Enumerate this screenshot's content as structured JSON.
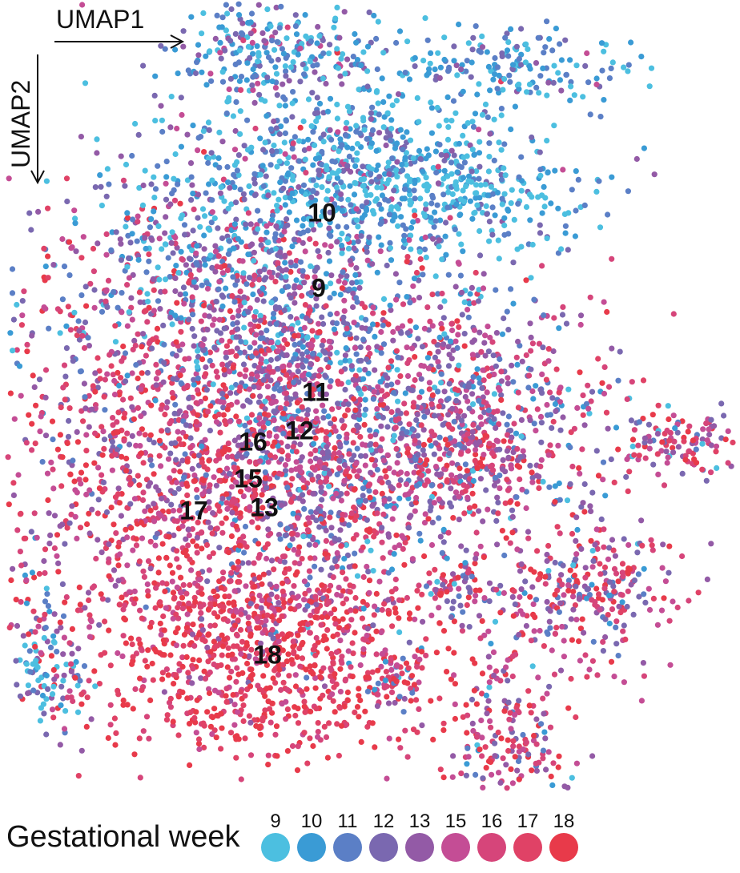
{
  "chart_data": {
    "type": "scatter",
    "title": "",
    "xlabel": "UMAP1",
    "ylabel": "UMAP2",
    "legend": {
      "title": "Gestational week",
      "placement": "bottom",
      "entries": [
        {
          "label": "9",
          "color": "#4cbfe0"
        },
        {
          "label": "10",
          "color": "#3a9bd5"
        },
        {
          "label": "11",
          "color": "#5b7fc6"
        },
        {
          "label": "12",
          "color": "#7a68b0"
        },
        {
          "label": "13",
          "color": "#935aa6"
        },
        {
          "label": "15",
          "color": "#c44d95"
        },
        {
          "label": "16",
          "color": "#d6457a"
        },
        {
          "label": "17",
          "color": "#e04266"
        },
        {
          "label": "18",
          "color": "#e83a4a"
        }
      ]
    },
    "centroid_labels": [
      "10",
      "9",
      "11",
      "12",
      "16",
      "15",
      "17",
      "13",
      "18"
    ],
    "grid": false
  }
}
